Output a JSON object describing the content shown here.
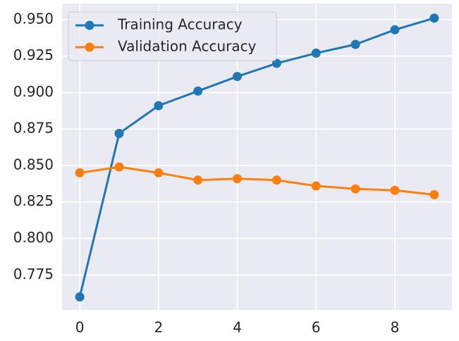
{
  "chart_data": {
    "type": "line",
    "x": [
      0,
      1,
      2,
      3,
      4,
      5,
      6,
      7,
      8,
      9
    ],
    "series": [
      {
        "name": "Training Accuracy",
        "color": "#1f77b4",
        "values": [
          0.76,
          0.872,
          0.891,
          0.901,
          0.911,
          0.92,
          0.927,
          0.933,
          0.943,
          0.951
        ]
      },
      {
        "name": "Validation Accuracy",
        "color": "#ff7f0e",
        "values": [
          0.845,
          0.849,
          0.845,
          0.84,
          0.841,
          0.84,
          0.836,
          0.834,
          0.833,
          0.83
        ]
      }
    ],
    "xlim": [
      -0.45,
      9.45
    ],
    "xticks": [
      0,
      2,
      4,
      6,
      8
    ],
    "ylim": [
      0.751,
      0.961
    ],
    "yticks": [
      0.775,
      {
        "value": 0.8,
        "label": "0.800"
      },
      0.825,
      {
        "value": 0.85,
        "label": "0.850"
      },
      0.875,
      {
        "value": 0.9,
        "label": "0.900"
      },
      0.925,
      {
        "value": 0.95,
        "label": "0.950"
      }
    ],
    "grid": true,
    "legend": "upper-left"
  }
}
